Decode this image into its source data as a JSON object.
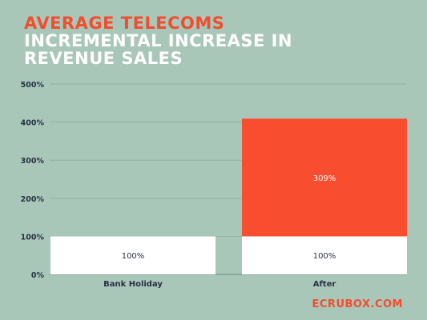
{
  "title": {
    "line1": "AVERAGE TELECOMS",
    "line2": "INCREMENTAL INCREASE IN",
    "line3": "REVENUE SALES"
  },
  "brand": "ECRUBOX.COM",
  "colors": {
    "background": "#a9c7b9",
    "accent": "#f04e2f",
    "base": "#ffffff",
    "increment": "#f94d30",
    "axis_text": "#2a2f45",
    "grid": "#8eab9e"
  },
  "chart_data": {
    "type": "bar",
    "stacked": true,
    "categories": [
      "Bank Holiday",
      "After"
    ],
    "series": [
      {
        "values": [
          100,
          100
        ],
        "labels": [
          "100%",
          "100%"
        ]
      },
      {
        "values": [
          0,
          309
        ],
        "labels": [
          "",
          "309%"
        ]
      }
    ],
    "y_ticks": [
      "0%",
      "100%",
      "200%",
      "300%",
      "400%",
      "500%"
    ],
    "ylim": [
      0,
      500
    ],
    "grid": true
  }
}
